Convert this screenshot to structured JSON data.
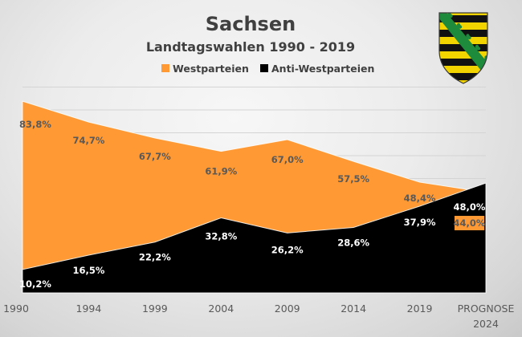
{
  "chart_data": {
    "type": "area",
    "stacking": "overlapping",
    "title": "Sachsen",
    "subtitle": "Landtagswahlen 1990 - 2019",
    "categories": [
      "1990",
      "1994",
      "1999",
      "2004",
      "2009",
      "2014",
      "2019",
      "PROGNOSE 2024"
    ],
    "category_lines": [
      [
        "1990"
      ],
      [
        "1994"
      ],
      [
        "1999"
      ],
      [
        "2004"
      ],
      [
        "2009"
      ],
      [
        "2014"
      ],
      [
        "2019"
      ],
      [
        "PROGNOSE",
        "2024"
      ]
    ],
    "series": [
      {
        "name": "Westparteien",
        "color": "#FF9933",
        "values": [
          83.8,
          74.7,
          67.7,
          61.9,
          67.0,
          57.5,
          48.4,
          44.0
        ],
        "labels": [
          "83,8%",
          "74,7%",
          "67,7%",
          "61,9%",
          "67,0%",
          "57,5%",
          "48,4%",
          "44,0%"
        ]
      },
      {
        "name": "Anti-Westparteien",
        "color": "#000000",
        "values": [
          10.2,
          16.5,
          22.2,
          32.8,
          26.2,
          28.6,
          37.9,
          48.0
        ],
        "labels": [
          "10,2%",
          "16,5%",
          "22,2%",
          "32,8%",
          "26,2%",
          "28,6%",
          "37,9%",
          "48,0%"
        ]
      }
    ],
    "xlabel": "",
    "ylabel": "",
    "ylim": [
      0,
      90
    ],
    "y_gridline_step": 10,
    "grid": true,
    "y_axis_visible": false,
    "legend": "top-center",
    "emblem": "coat-of-arms-saxony"
  },
  "colors": {
    "orange": "#FF9933",
    "black": "#000000",
    "text": "#404040",
    "emblem_yellow": "#F2D500",
    "emblem_green": "#1E8A3C"
  }
}
